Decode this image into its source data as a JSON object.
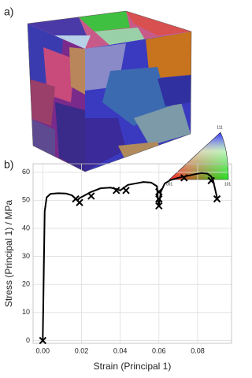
{
  "panel_labels": [
    "a)",
    "b)"
  ],
  "ipf_key": {
    "top": "111",
    "left": "001",
    "right": "101"
  },
  "chart_data": {
    "type": "line",
    "x_label": "Strain (Principal 1)",
    "y_label": "Stress (Principal 1) / MPa",
    "x": [
      0,
      0.001,
      0.002,
      0.004,
      0.008,
      0.012,
      0.015,
      0.017,
      0.018,
      0.019,
      0.021,
      0.025,
      0.03,
      0.035,
      0.038,
      0.04,
      0.042,
      0.044,
      0.048,
      0.052,
      0.056,
      0.059,
      0.0595,
      0.06,
      0.061,
      0.063,
      0.066,
      0.07,
      0.074,
      0.078,
      0.082,
      0.085,
      0.087,
      0.088,
      0.09
    ],
    "y": [
      0,
      46,
      51,
      52.3,
      52.5,
      52.4,
      51.8,
      50.5,
      50,
      50.8,
      51.5,
      53,
      54.3,
      54.5,
      54,
      53.5,
      54.5,
      55.5,
      56,
      56.5,
      56.3,
      55,
      50,
      48,
      53,
      56,
      57.2,
      58,
      58.6,
      59.2,
      59.7,
      59.5,
      58.5,
      57,
      51
    ],
    "color": "#000000",
    "markers": {
      "x": [
        0,
        0.017,
        0.019,
        0.025,
        0.038,
        0.043,
        0.06,
        0.06,
        0.06,
        0.073,
        0.087,
        0.09
      ],
      "y": [
        0,
        50.5,
        49.2,
        51.5,
        53.5,
        53.5,
        53,
        50.5,
        48,
        58,
        57,
        50.5
      ]
    },
    "xlim": [
      -0.005,
      0.0975
    ],
    "ylim": [
      -1,
      63
    ],
    "xticks": [
      {
        "value": 0,
        "label": "0.00"
      },
      {
        "value": 0.02,
        "label": "0.02"
      },
      {
        "value": 0.04,
        "label": "0.04"
      },
      {
        "value": 0.06,
        "label": "0.06"
      },
      {
        "value": 0.08,
        "label": "0.08"
      }
    ],
    "yticks": [
      0,
      10,
      20,
      30,
      40,
      50,
      60
    ],
    "grid": true
  }
}
